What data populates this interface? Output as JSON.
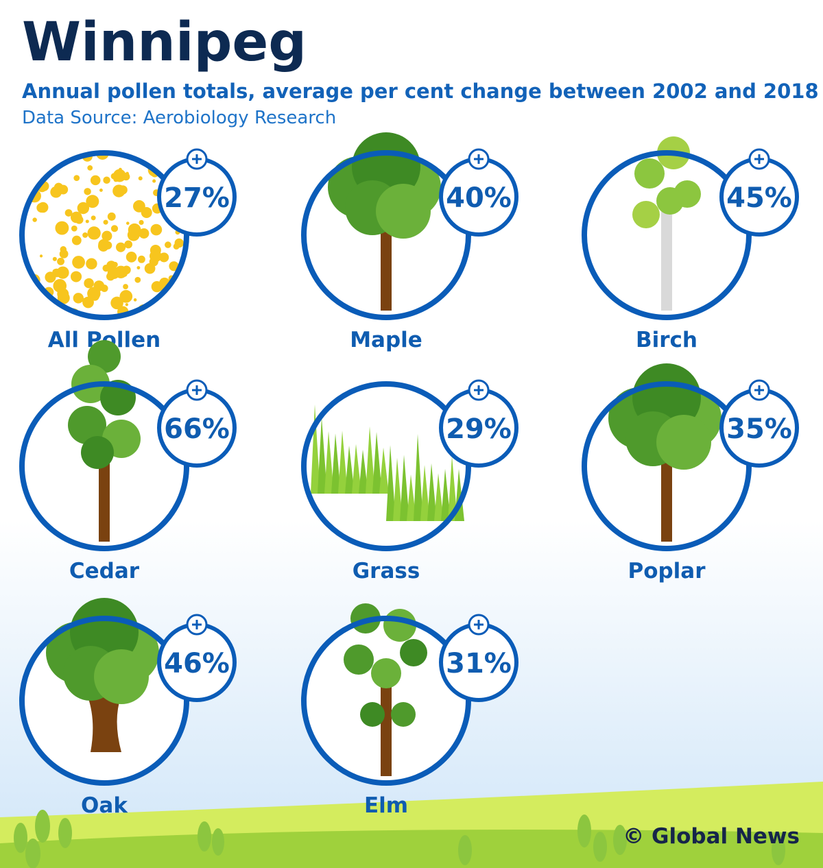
{
  "header": {
    "title": "Winnipeg",
    "subtitle": "Annual pollen totals, average per cent change between 2002 and 2018",
    "source": "Data Source: Aerobiology Research"
  },
  "items": [
    {
      "name": "All Pollen",
      "change": "27%"
    },
    {
      "name": "Maple",
      "change": "40%"
    },
    {
      "name": "Birch",
      "change": "45%"
    },
    {
      "name": "Cedar",
      "change": "66%"
    },
    {
      "name": "Grass",
      "change": "29%"
    },
    {
      "name": "Poplar",
      "change": "35%"
    },
    {
      "name": "Oak",
      "change": "46%"
    },
    {
      "name": "Elm",
      "change": "31%"
    }
  ],
  "credit": "© Global News"
}
